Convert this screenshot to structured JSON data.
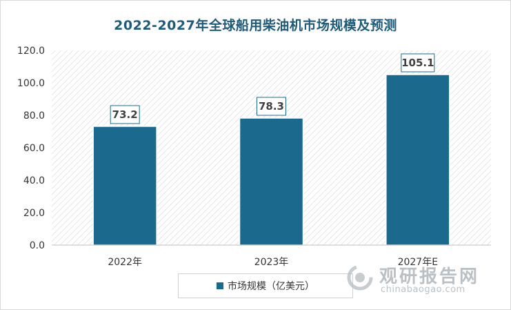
{
  "chart_data": {
    "type": "bar",
    "title": "2022-2027年全球船用柴油机市场规模及预测",
    "categories": [
      "2022年",
      "2023年",
      "2027年E"
    ],
    "series": [
      {
        "name": "市场规模（亿美元）",
        "values": [
          73.2,
          78.3,
          105.1
        ]
      }
    ],
    "data_labels": [
      "73.2",
      "78.3",
      "105.1"
    ],
    "yticks": [
      "0.0",
      "20.0",
      "40.0",
      "60.0",
      "80.0",
      "100.0",
      "120.0"
    ],
    "ylim": [
      0,
      120
    ],
    "grid": false,
    "background_pattern": "diagonal-hatch",
    "legend_position": "bottom",
    "colors": {
      "bar": "#1b6a8e",
      "title": "#1f5a78"
    }
  },
  "watermark": {
    "brand": "观研报告网",
    "url": "chinabaogao.com"
  }
}
